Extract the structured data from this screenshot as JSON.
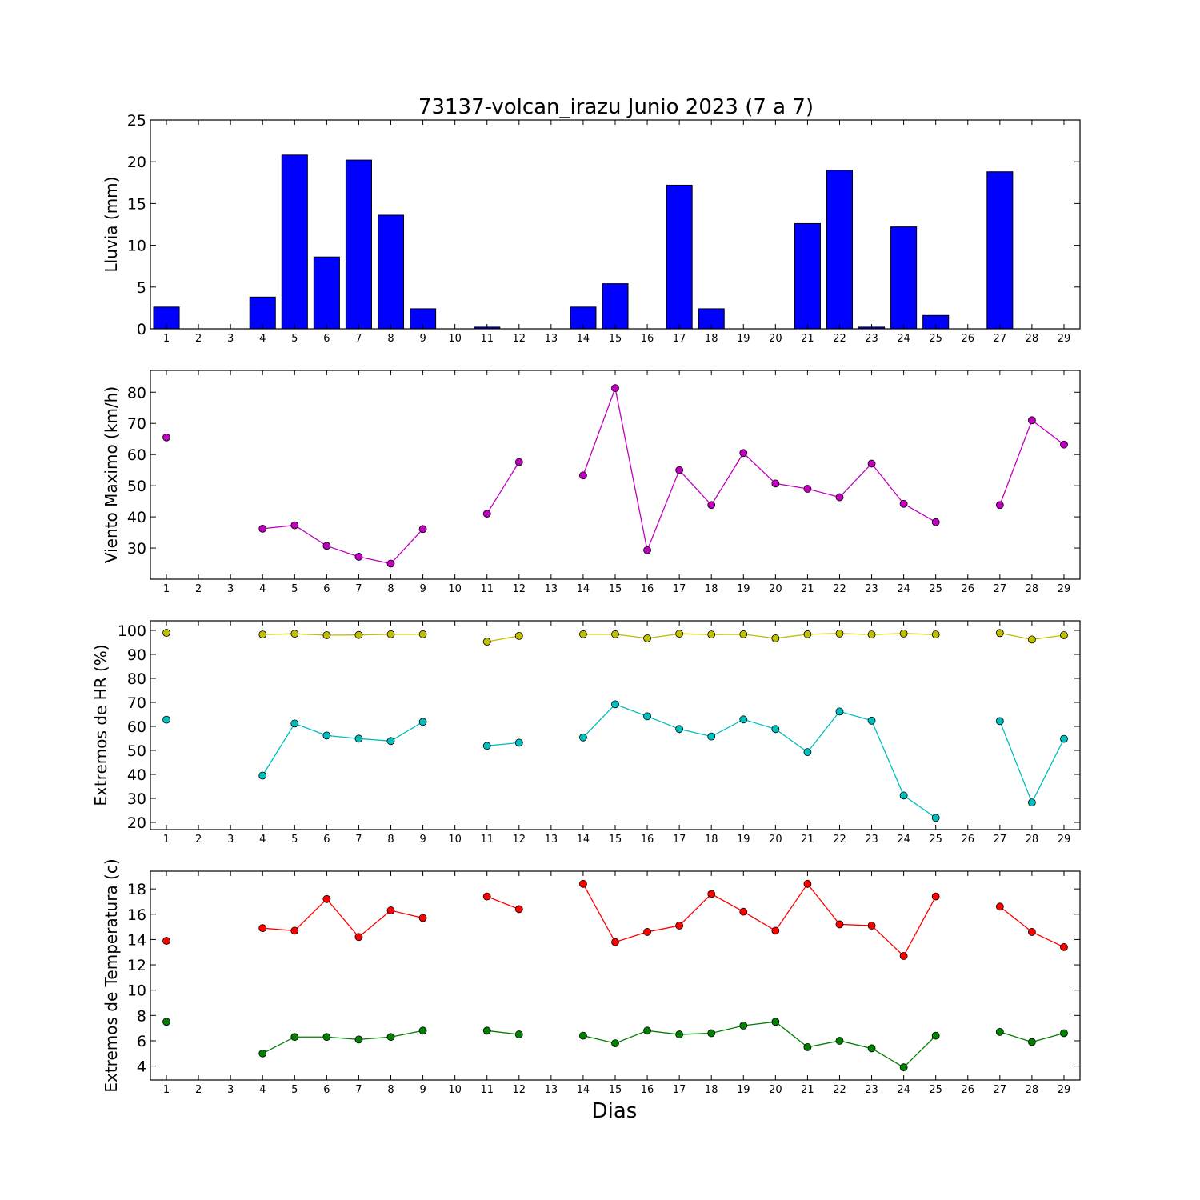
{
  "title": "73137-volcan_irazu Junio 2023  (7 a 7)",
  "xlabel": "Dias",
  "chart_data": [
    {
      "type": "bar",
      "ylabel": "Lluvia (mm)",
      "ylim": [
        0,
        25
      ],
      "yticks": [
        0,
        5,
        10,
        15,
        20,
        25
      ],
      "x": [
        1,
        2,
        3,
        4,
        5,
        6,
        7,
        8,
        9,
        10,
        11,
        12,
        13,
        14,
        15,
        16,
        17,
        18,
        19,
        20,
        21,
        22,
        23,
        24,
        25,
        26,
        27,
        28,
        29
      ],
      "series": [
        {
          "color": "#0000ff",
          "values": [
            2.6,
            0,
            0,
            3.8,
            20.8,
            8.6,
            20.2,
            13.6,
            2.4,
            0,
            0.2,
            0,
            0,
            2.6,
            5.4,
            0,
            17.2,
            2.4,
            0,
            0,
            12.6,
            19,
            0.2,
            12.2,
            1.6,
            0,
            18.8,
            0,
            0
          ]
        }
      ],
      "grid": false
    },
    {
      "type": "line",
      "ylabel": "Viento Maximo (km/h)",
      "ylim": [
        20,
        87
      ],
      "yticks": [
        30,
        40,
        50,
        60,
        70,
        80
      ],
      "x": [
        1,
        2,
        3,
        4,
        5,
        6,
        7,
        8,
        9,
        10,
        11,
        12,
        13,
        14,
        15,
        16,
        17,
        18,
        19,
        20,
        21,
        22,
        23,
        24,
        25,
        26,
        27,
        28,
        29
      ],
      "series": [
        {
          "color": "#bf00bf",
          "values": [
            65.5,
            null,
            null,
            36.2,
            37.3,
            30.7,
            27.2,
            25,
            36.1,
            null,
            41,
            57.6,
            null,
            53.3,
            81.3,
            29.3,
            55,
            43.8,
            60.5,
            50.7,
            49,
            46.3,
            57.1,
            44.2,
            38.3,
            null,
            43.8,
            71,
            63.2
          ]
        }
      ],
      "grid": false
    },
    {
      "type": "line",
      "ylabel": "Extremos de HR (%)",
      "ylim": [
        17,
        104
      ],
      "yticks": [
        20,
        30,
        40,
        50,
        60,
        70,
        80,
        90,
        100
      ],
      "x": [
        1,
        2,
        3,
        4,
        5,
        6,
        7,
        8,
        9,
        10,
        11,
        12,
        13,
        14,
        15,
        16,
        17,
        18,
        19,
        20,
        21,
        22,
        23,
        24,
        25,
        26,
        27,
        28,
        29
      ],
      "series": [
        {
          "color": "#bfbf00",
          "values": [
            99,
            null,
            null,
            98.3,
            98.6,
            98,
            98.1,
            98.4,
            98.4,
            null,
            95.3,
            97.7,
            null,
            98.4,
            98.4,
            96.7,
            98.6,
            98.3,
            98.4,
            96.7,
            98.4,
            98.7,
            98.3,
            98.7,
            98.3,
            null,
            98.9,
            96.2,
            98
          ]
        },
        {
          "color": "#00bfbf",
          "values": [
            62.8,
            null,
            null,
            39.5,
            61.2,
            56.2,
            54.9,
            53.9,
            61.9,
            null,
            51.9,
            53.2,
            null,
            55.4,
            69.2,
            64.2,
            58.9,
            55.8,
            62.9,
            58.9,
            49.3,
            66.2,
            62.4,
            31.2,
            21.9,
            null,
            62.2,
            28.3,
            54.8
          ]
        }
      ],
      "grid": false
    },
    {
      "type": "line",
      "ylabel": "Extremos de Temperatura (c)",
      "ylim": [
        2.9,
        19.4
      ],
      "yticks": [
        4,
        6,
        8,
        10,
        12,
        14,
        16,
        18
      ],
      "x": [
        1,
        2,
        3,
        4,
        5,
        6,
        7,
        8,
        9,
        10,
        11,
        12,
        13,
        14,
        15,
        16,
        17,
        18,
        19,
        20,
        21,
        22,
        23,
        24,
        25,
        26,
        27,
        28,
        29
      ],
      "series": [
        {
          "color": "#ff0000",
          "values": [
            13.9,
            null,
            null,
            14.9,
            14.7,
            17.2,
            14.2,
            16.3,
            15.7,
            null,
            17.4,
            16.4,
            null,
            18.4,
            13.8,
            14.6,
            15.1,
            17.6,
            16.2,
            14.7,
            18.4,
            15.2,
            15.1,
            12.7,
            17.4,
            null,
            16.6,
            14.6,
            13.4
          ]
        },
        {
          "color": "#008000",
          "values": [
            7.5,
            null,
            null,
            5,
            6.3,
            6.3,
            6.1,
            6.3,
            6.8,
            null,
            6.8,
            6.5,
            null,
            6.4,
            5.8,
            6.8,
            6.5,
            6.6,
            7.2,
            7.5,
            5.5,
            6,
            5.4,
            3.9,
            6.4,
            null,
            6.7,
            5.9,
            6.6
          ]
        }
      ],
      "grid": false
    }
  ]
}
